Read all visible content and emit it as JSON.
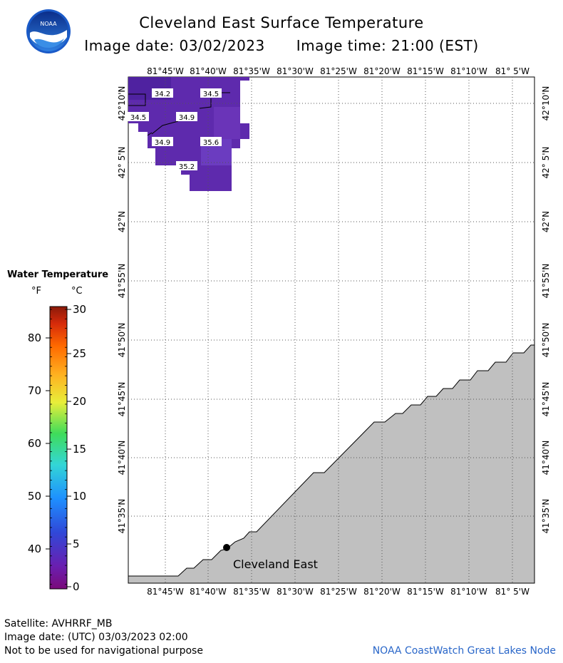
{
  "header": {
    "title": "Cleveland East Surface Temperature",
    "image_date": "Image date: 03/02/2023",
    "image_time": "Image time: 21:00 (EST)"
  },
  "map": {
    "lon_labels": [
      "81°45'W",
      "81°40'W",
      "81°35'W",
      "81°30'W",
      "81°25'W",
      "81°20'W",
      "81°15'W",
      "81°10'W",
      "81° 5'W"
    ],
    "lat_labels": [
      "42°10'N",
      "42° 5'N",
      "42°N",
      "41°55'N",
      "41°50'N",
      "41°45'N",
      "41°40'N",
      "41°35'N"
    ],
    "isotherm_labels": [
      {
        "text": "34.2"
      },
      {
        "text": "34.5"
      },
      {
        "text": "34.5"
      },
      {
        "text": "34.9"
      },
      {
        "text": "34.9"
      },
      {
        "text": "35.6"
      },
      {
        "text": "35.2"
      }
    ],
    "station": "Cleveland East",
    "colors": {
      "water_warm": "#6a3cb8",
      "water_cold": "#5a28a8",
      "land": "#c0c0c0"
    }
  },
  "legend": {
    "title": "Water Temperature",
    "unit_f": "°F",
    "unit_c": "°C",
    "f_ticks": [
      "80",
      "70",
      "60",
      "50",
      "40"
    ],
    "c_ticks": [
      "30",
      "25",
      "20",
      "15",
      "10",
      "5",
      "0"
    ]
  },
  "footer": {
    "satellite": "Satellite: AVHRRF_MB",
    "utc_date": "Image date: (UTC) 03/03/2023  02:00",
    "disclaimer": "Not to be used for navigational purpose",
    "credit": "NOAA CoastWatch Great Lakes Node"
  }
}
